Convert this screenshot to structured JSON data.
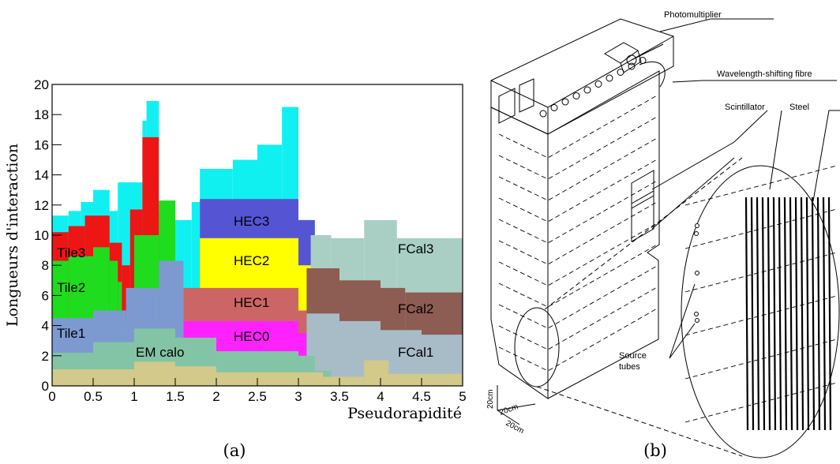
{
  "chart_data": {
    "type": "area",
    "xlabel": "Pseudorapidité",
    "ylabel": "Longueurs  d'interaction",
    "xlim": [
      0,
      5
    ],
    "ylim": [
      0,
      20
    ],
    "xticks": [
      "0",
      "0.5",
      "1",
      "1.5",
      "2",
      "2.5",
      "3",
      "3.5",
      "4",
      "4.5",
      "5"
    ],
    "yticks": [
      "0",
      "2",
      "4",
      "6",
      "8",
      "10",
      "12",
      "14",
      "16",
      "18",
      "20"
    ],
    "region_labels": [
      "EM calo",
      "Tile1",
      "Tile2",
      "Tile3",
      "HEC0",
      "HEC1",
      "HEC2",
      "HEC3",
      "FCal1",
      "FCal2",
      "FCal3"
    ],
    "colors": {
      "material": "#d2c98a",
      "em_calo": "#84c4a6",
      "tile1": "#7d9ad0",
      "tile2": "#1fdc1f",
      "tile3": "#ee1515",
      "hec0": "#ff22ff",
      "hec1": "#cc6666",
      "hec2": "#ffff00",
      "hec3": "#5555d4",
      "outer": "#11f0f0",
      "fcal1": "#a8bcc8",
      "fcal2": "#8d5c52",
      "fcal3": "#a9cfc5"
    }
  },
  "figure_b": {
    "labels": {
      "photomultiplier": "Photomultiplier",
      "wls_fibre": "Wavelength-shifting fibre",
      "scintillator": "Scintillator",
      "steel": "Steel",
      "source_tubes_1": "Source",
      "source_tubes_2": "tubes"
    },
    "scale_labels": [
      "20cm",
      "20cm",
      "20cm"
    ]
  },
  "captions": {
    "a": "(a)",
    "b": "(b)"
  }
}
